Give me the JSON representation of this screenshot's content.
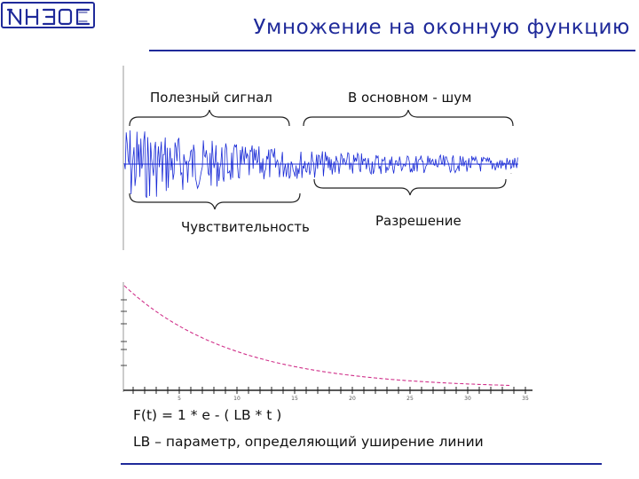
{
  "logo": {
    "text": "ИНЭОС",
    "color": "#1f2a9a"
  },
  "title": "Умножение на оконную функцию",
  "labels": {
    "useful_signal": "Полезный сигнал",
    "mostly_noise": "В основном - шум",
    "sensitivity": "Чувствительность",
    "resolution": "Разрешение"
  },
  "formula": "F(t) = 1 * e - ( LB * t )",
  "description": "LB – параметр, определяющий уширение линии",
  "colors": {
    "accent": "#1f2a9a",
    "signal": "#1a2bd6",
    "window_curve": "#d0308a",
    "text": "#111111"
  },
  "chart_data": {
    "type": "line",
    "x_ticks": [
      "5",
      "10",
      "15",
      "20",
      "25",
      "30",
      "35"
    ],
    "series": [
      {
        "name": "",
        "function": "exp(-LB*t)",
        "style": "dashed",
        "color": "#d0308a"
      }
    ]
  }
}
